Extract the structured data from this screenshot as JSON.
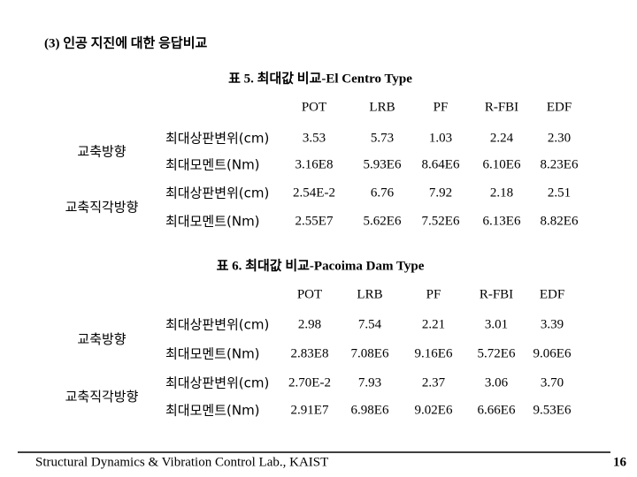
{
  "title": "(3) 인공 지진에 대한 응답비교",
  "tables": [
    {
      "caption": "표 5. 최대값 비교-El Centro Type",
      "columns": [
        "POT",
        "LRB",
        "PF",
        "R-FBI",
        "EDF"
      ],
      "groups": [
        {
          "label": "교축방향",
          "rows": [
            {
              "label": "최대상판변위(cm)",
              "values": [
                "3.53",
                "5.73",
                "1.03",
                "2.24",
                "2.30"
              ]
            },
            {
              "label": "최대모멘트(Nm)",
              "values": [
                "3.16E8",
                "5.93E6",
                "8.64E6",
                "6.10E6",
                "8.23E6"
              ]
            }
          ]
        },
        {
          "label": "교축직각방향",
          "rows": [
            {
              "label": "최대상판변위(cm)",
              "values": [
                "2.54E-2",
                "6.76",
                "7.92",
                "2.18",
                "2.51"
              ]
            },
            {
              "label": "최대모멘트(Nm)",
              "values": [
                "2.55E7",
                "5.62E6",
                "7.52E6",
                "6.13E6",
                "8.82E6"
              ]
            }
          ]
        }
      ]
    },
    {
      "caption": "표 6. 최대값 비교-Pacoima Dam Type",
      "columns": [
        "POT",
        "LRB",
        "PF",
        "R-FBI",
        "EDF"
      ],
      "groups": [
        {
          "label": "교축방향",
          "rows": [
            {
              "label": "최대상판변위(cm)",
              "values": [
                "2.98",
                "7.54",
                "2.21",
                "3.01",
                "3.39"
              ]
            },
            {
              "label": "최대모멘트(Nm)",
              "values": [
                "2.83E8",
                "7.08E6",
                "9.16E6",
                "5.72E6",
                "9.06E6"
              ]
            }
          ]
        },
        {
          "label": "교축직각방향",
          "rows": [
            {
              "label": "최대상판변위(cm)",
              "values": [
                "2.70E-2",
                "7.93",
                "2.37",
                "3.06",
                "3.70"
              ]
            },
            {
              "label": "최대모멘트(Nm)",
              "values": [
                "2.91E7",
                "6.98E6",
                "9.02E6",
                "6.66E6",
                "9.53E6"
              ]
            }
          ]
        }
      ]
    }
  ],
  "footer": "Structural Dynamics & Vibration Control Lab., KAIST",
  "page_number": "16"
}
